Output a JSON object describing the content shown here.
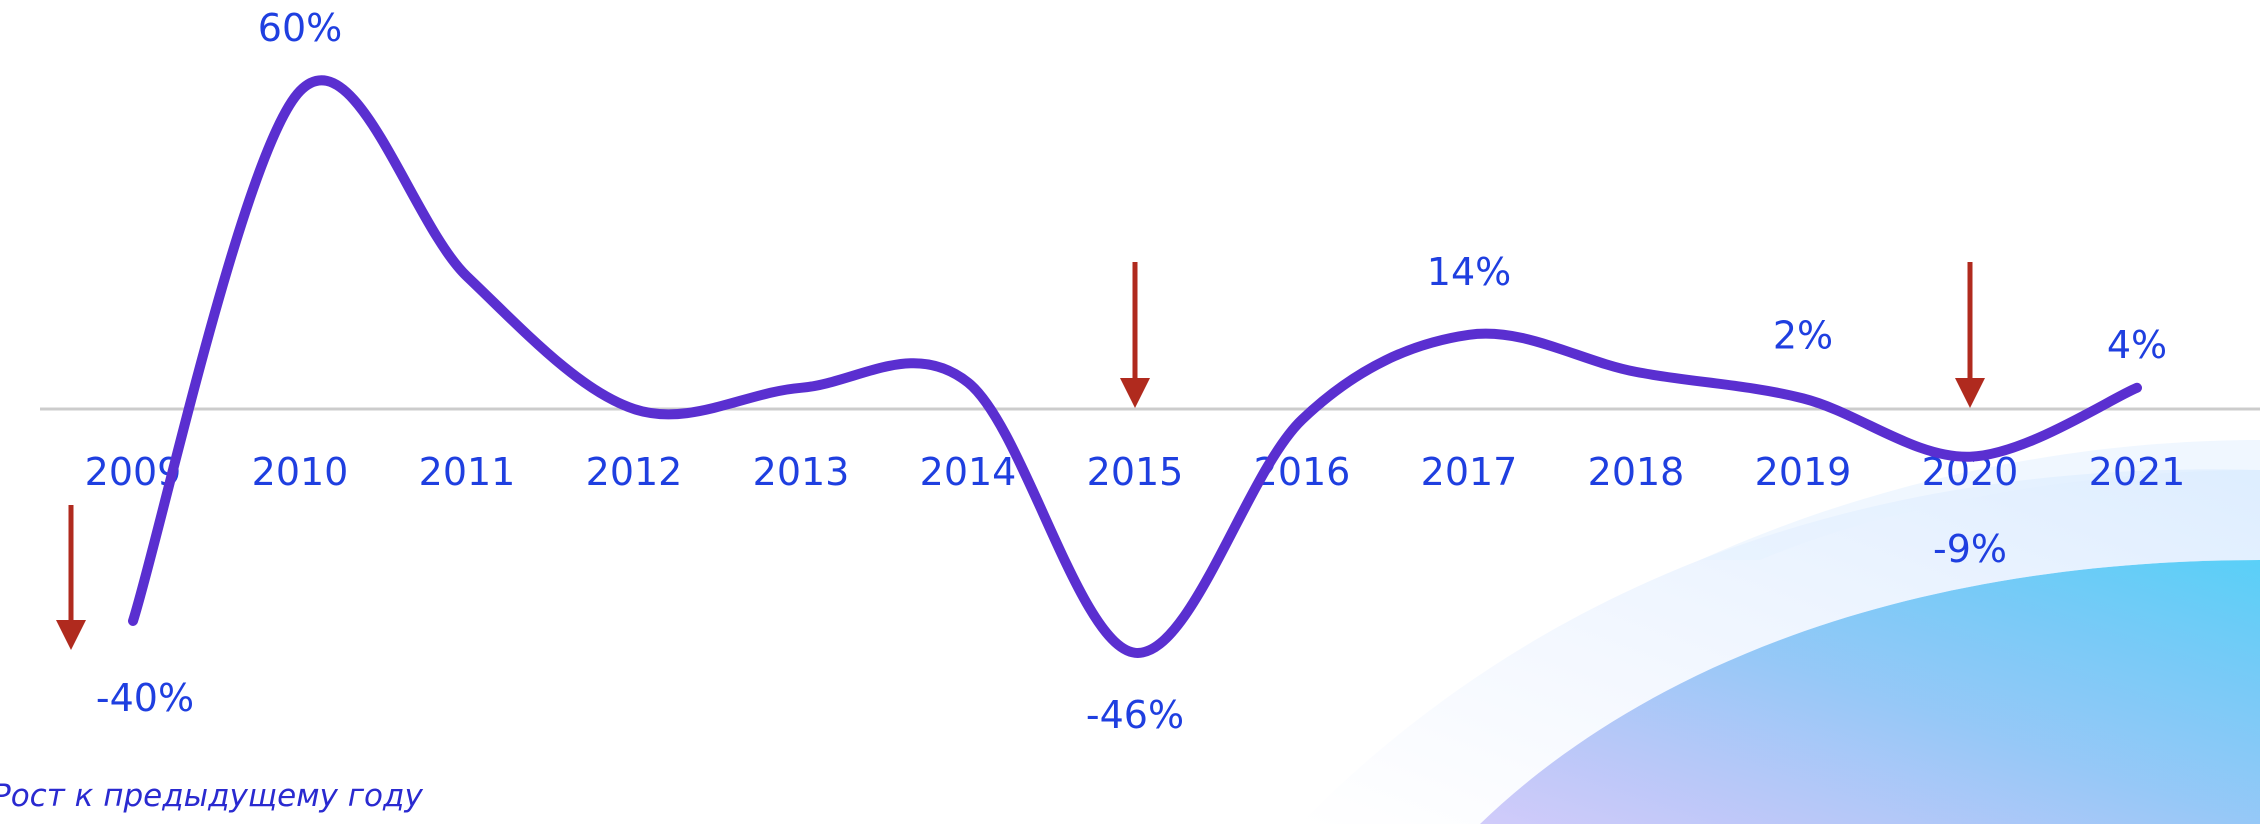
{
  "chart_data": {
    "type": "line",
    "x": [
      "2009",
      "2010",
      "2011",
      "2012",
      "2013",
      "2014",
      "2015",
      "2016",
      "2017",
      "2018",
      "2019",
      "2020",
      "2021"
    ],
    "values": [
      -40,
      60,
      25,
      0,
      4,
      5,
      -46,
      -2,
      14,
      7,
      2,
      -9,
      4
    ],
    "data_labels": [
      {
        "x": "2009",
        "text": "-40%"
      },
      {
        "x": "2010",
        "text": "60%"
      },
      {
        "x": "2015",
        "text": "-46%"
      },
      {
        "x": "2017",
        "text": "14%"
      },
      {
        "x": "2019",
        "text": "2%"
      },
      {
        "x": "2020",
        "text": "-9%"
      },
      {
        "x": "2021",
        "text": "4%"
      }
    ],
    "down_arrows_at": [
      "2009",
      "2015",
      "2020"
    ],
    "ylim": [
      -50,
      60
    ],
    "grid": false,
    "zero_line": true,
    "note": "Рост к предыдущему году",
    "colors": {
      "line": "#5a2fd0",
      "labels": "#1f3fe0",
      "arrows": "#b02a1e",
      "zero_line": "#cccccc"
    }
  }
}
